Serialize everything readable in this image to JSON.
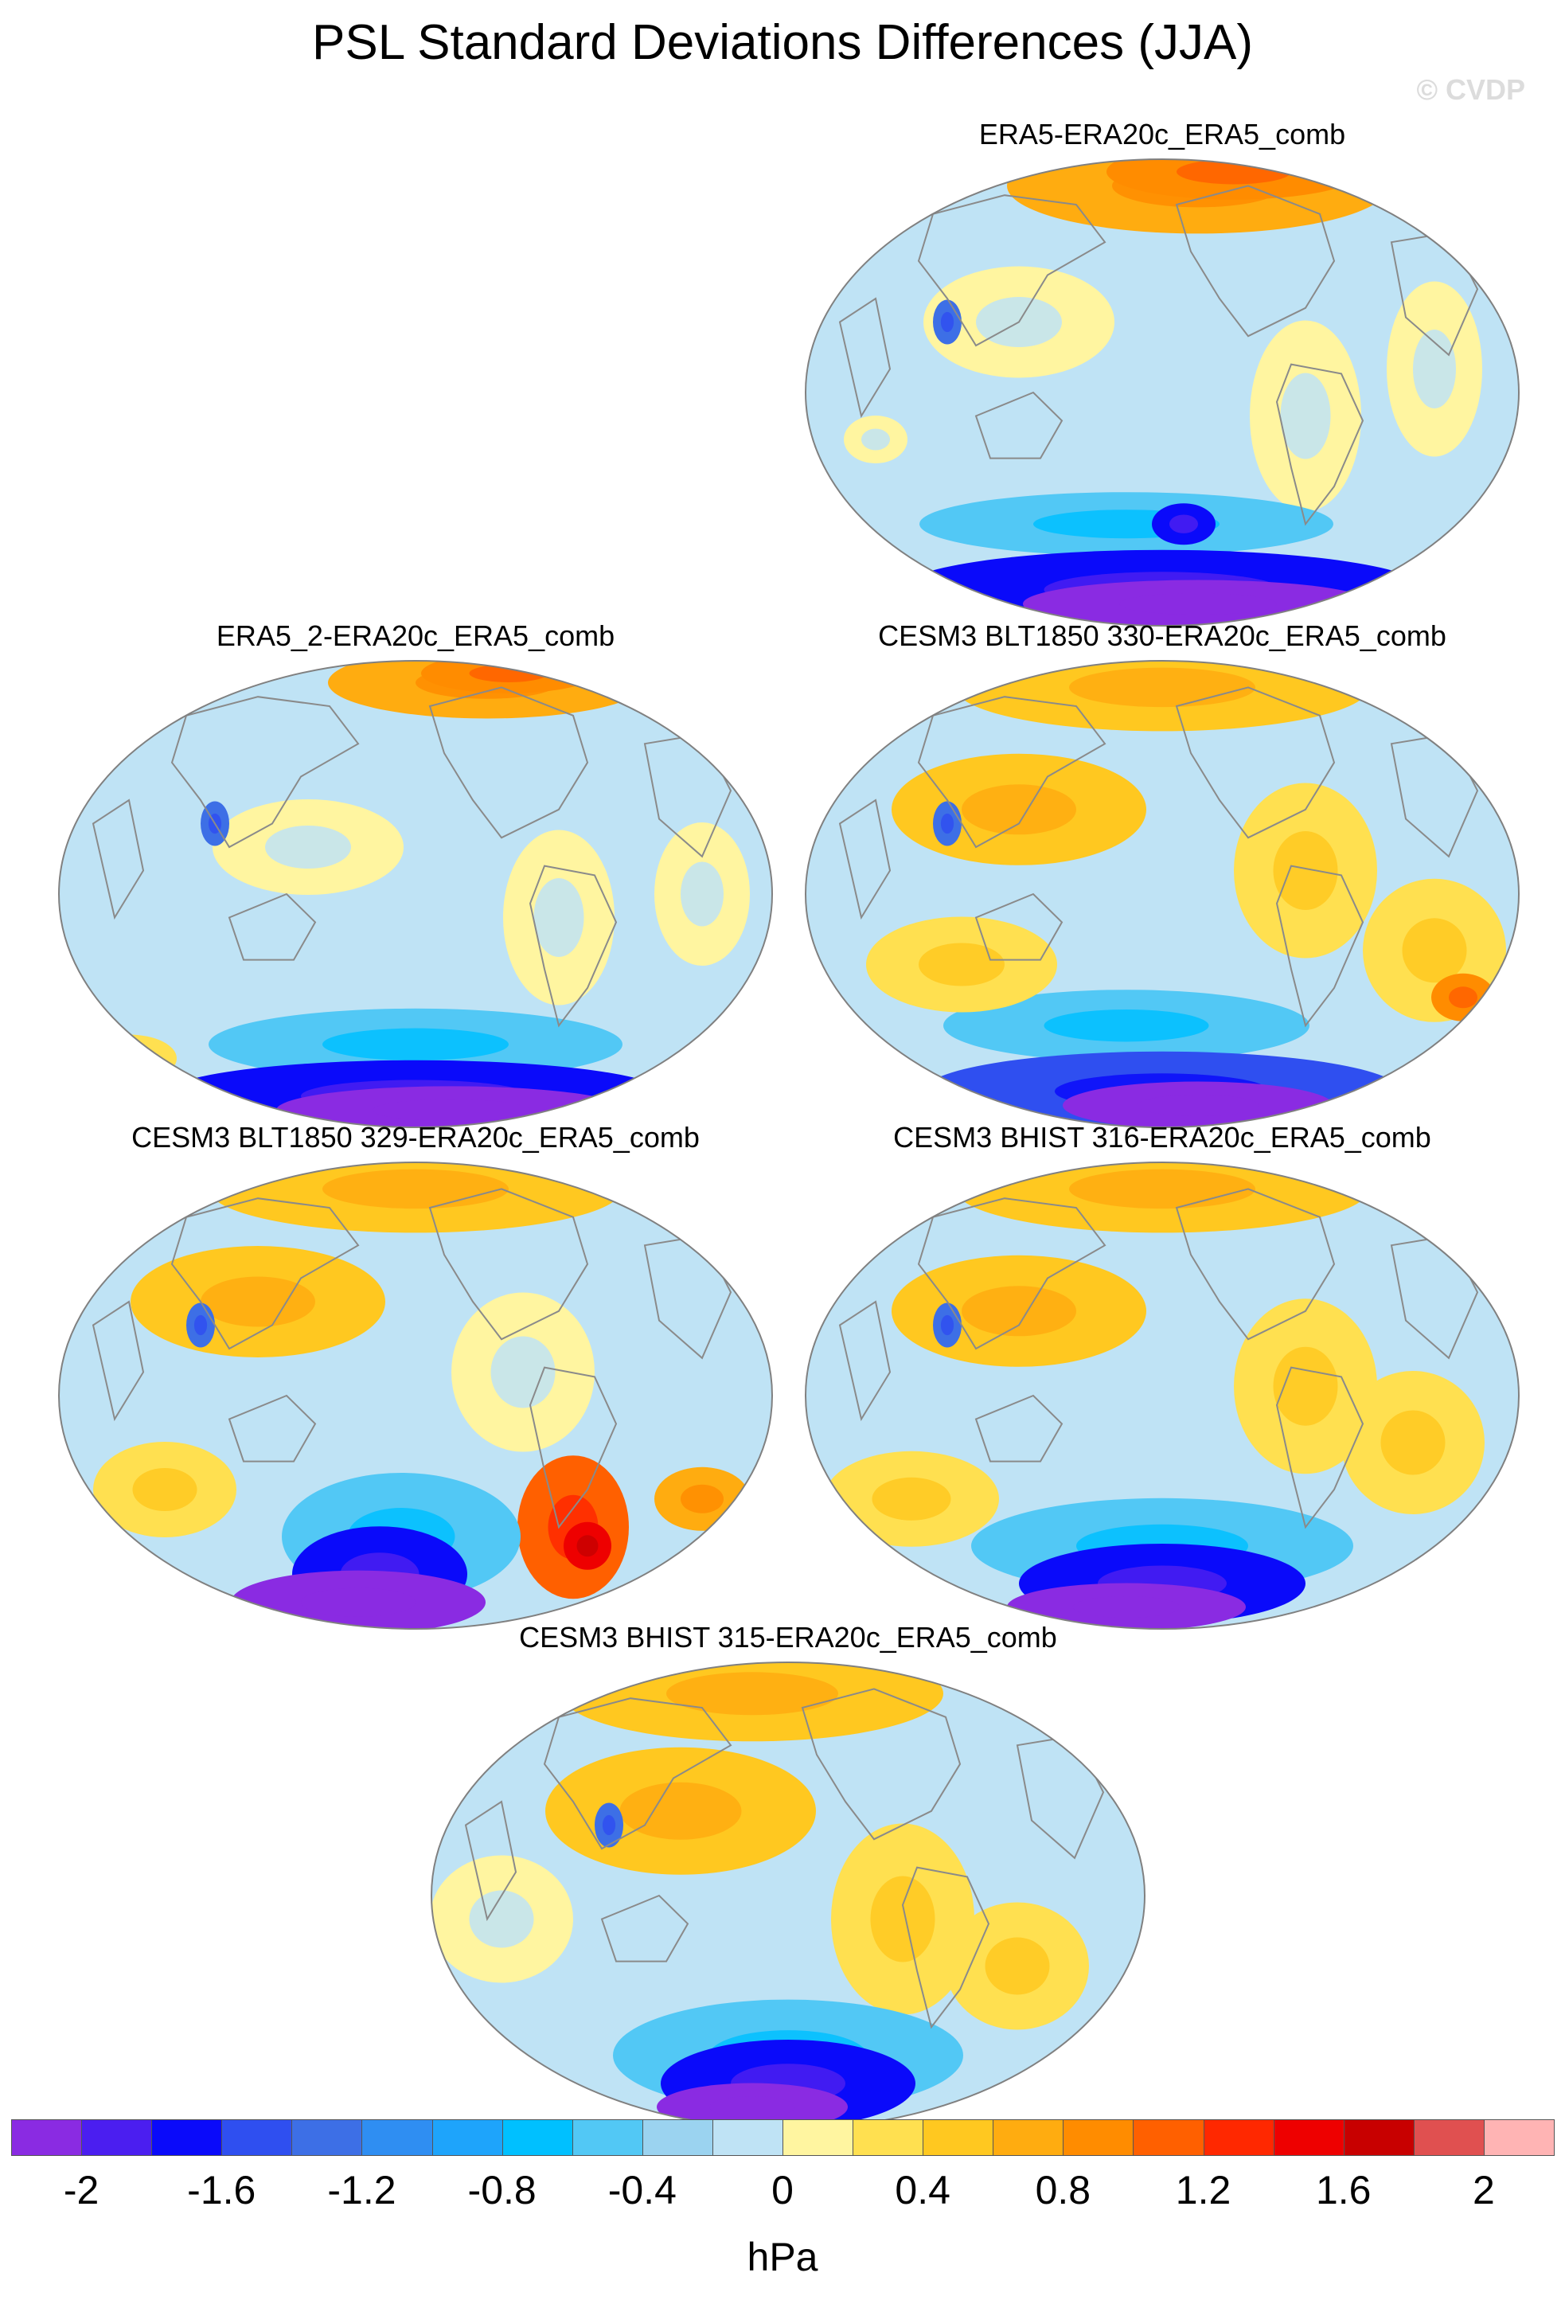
{
  "title": "PSL Standard Deviations Differences (JJA)",
  "watermark": "© CVDP",
  "panels": [
    {
      "id": "p1",
      "label": "ERA5-ERA20c_ERA5_comb"
    },
    {
      "id": "p2",
      "label": "ERA5_2-ERA20c_ERA5_comb"
    },
    {
      "id": "p3",
      "label": "CESM3 BLT1850 330-ERA20c_ERA5_comb"
    },
    {
      "id": "p4",
      "label": "CESM3 BLT1850 329-ERA20c_ERA5_comb"
    },
    {
      "id": "p5",
      "label": "CESM3 BHIST 316-ERA20c_ERA5_comb"
    },
    {
      "id": "p6",
      "label": "CESM3 BHIST 315-ERA20c_ERA5_comb"
    }
  ],
  "colorbar": {
    "units": "hPa",
    "min": -2.2,
    "max": 2.2,
    "colors": [
      "#8a2be2",
      "#4b1ef0",
      "#0a0afa",
      "#2f4ff0",
      "#3d6fe6",
      "#2f8ef2",
      "#1ea4fb",
      "#00c0ff",
      "#52c8f5",
      "#9bd3f0",
      "#bfe3f5",
      "#fff5a0",
      "#ffe050",
      "#ffc820",
      "#ffac10",
      "#ff8c00",
      "#ff6000",
      "#ff2800",
      "#ee0000",
      "#c80000",
      "#e05050",
      "#ffb4b4"
    ],
    "tick_labels": [
      "-2",
      "-1.6",
      "-1.2",
      "-0.8",
      "-0.4",
      "0",
      "0.4",
      "0.8",
      "1.2",
      "1.6",
      "2"
    ],
    "tick_values": [
      -2,
      -1.6,
      -1.2,
      -0.8,
      -0.4,
      0,
      0.4,
      0.8,
      1.2,
      1.6,
      2
    ]
  },
  "map_style": {
    "neutral_negative": "#bfe3f5",
    "coastline": "#8a8a8a"
  }
}
